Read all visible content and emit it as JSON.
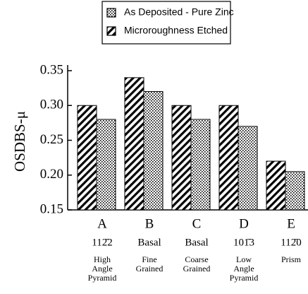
{
  "chart_data": {
    "type": "bar",
    "y_label": "OSDBS-μ",
    "categories": [
      "A",
      "B",
      "C",
      "D",
      "E"
    ],
    "category_notes": [
      "112̄2",
      "Basal",
      "Basal",
      "101̄3",
      "112̄0"
    ],
    "category_descriptions": [
      [
        "High",
        "Angle",
        "Pyramid"
      ],
      [
        "Fine",
        "Grained"
      ],
      [
        "Coarse",
        "Grained"
      ],
      [
        "Low",
        "Angle",
        "Pyramid"
      ],
      [
        "Prism"
      ]
    ],
    "series": [
      {
        "name": "As Deposited - Pure Zinc",
        "pattern": "dots",
        "color": "#000000",
        "values": [
          0.28,
          0.32,
          0.28,
          0.27,
          0.205
        ]
      },
      {
        "name": "Microroughness Etched",
        "pattern": "hatch",
        "color": "#000000",
        "values": [
          0.3,
          0.34,
          0.3,
          0.3,
          0.22
        ]
      }
    ],
    "ylim": [
      0.15,
      0.35
    ],
    "yticks": [
      0.15,
      {
        "value": 0.2,
        "label": "0.20"
      },
      0.25,
      {
        "value": 0.3,
        "label": "0.30"
      },
      0.35
    ]
  }
}
